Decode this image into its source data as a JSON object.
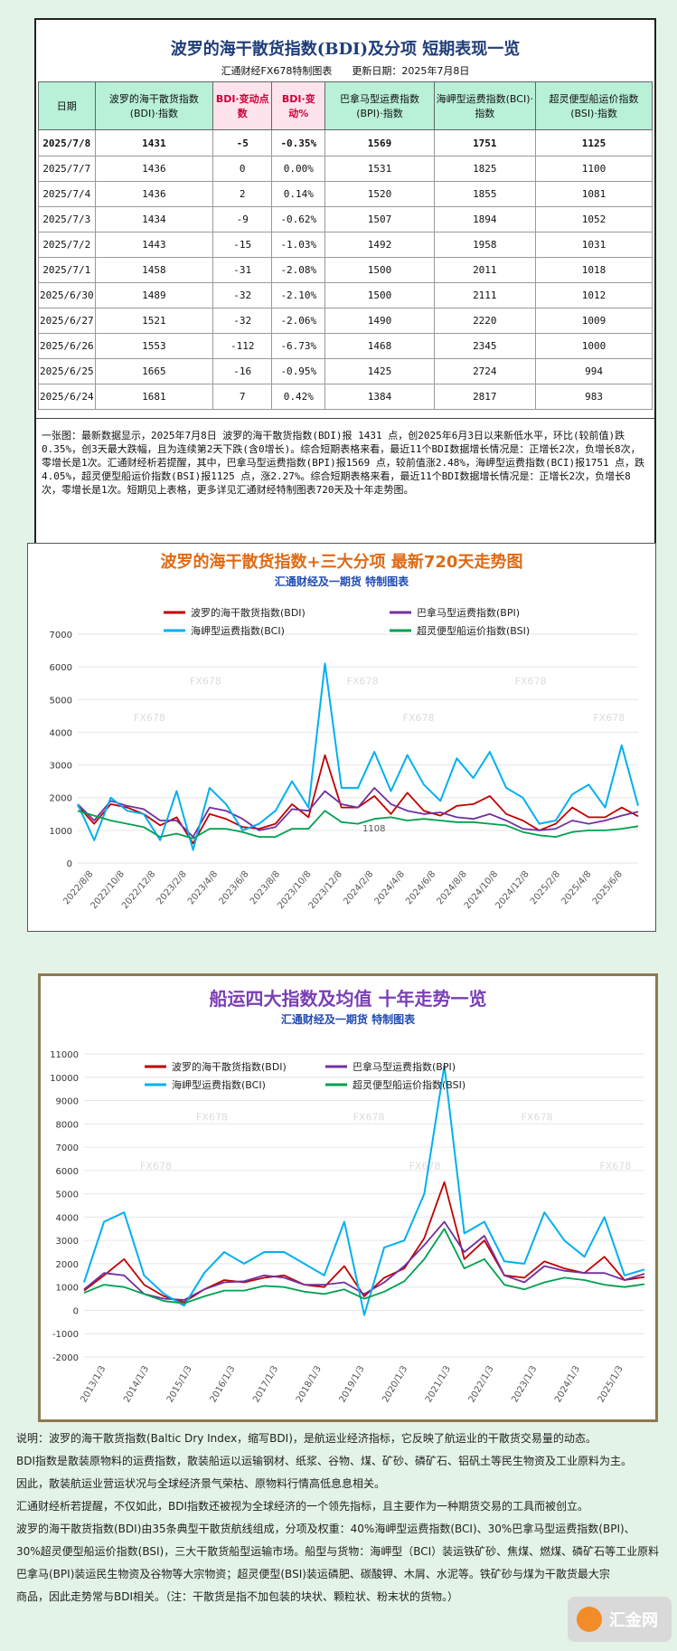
{
  "summary": {
    "title": "波罗的海干散货指数(BDI)及分项 短期表现一览",
    "subtitle": "汇通财经FX678特制图表　　更新日期：2025年7月8日",
    "columns": [
      "日期",
      "波罗的海干散货指数(BDI)·指数",
      "BDI·变动点数",
      "BDI·变动%",
      "巴拿马型运费指数(BPI)·指数",
      "海岬型运费指数(BCI)·指数",
      "超灵便型船运价指数(BSI)·指数"
    ],
    "rows": [
      [
        "2025/7/8",
        "1431",
        "-5",
        "-0.35%",
        "1569",
        "1751",
        "1125"
      ],
      [
        "2025/7/7",
        "1436",
        "0",
        "0.00%",
        "1531",
        "1825",
        "1100"
      ],
      [
        "2025/7/4",
        "1436",
        "2",
        "0.14%",
        "1520",
        "1855",
        "1081"
      ],
      [
        "2025/7/3",
        "1434",
        "-9",
        "-0.62%",
        "1507",
        "1894",
        "1052"
      ],
      [
        "2025/7/2",
        "1443",
        "-15",
        "-1.03%",
        "1492",
        "1958",
        "1031"
      ],
      [
        "2025/7/1",
        "1458",
        "-31",
        "-2.08%",
        "1500",
        "2011",
        "1018"
      ],
      [
        "2025/6/30",
        "1489",
        "-32",
        "-2.10%",
        "1500",
        "2111",
        "1012"
      ],
      [
        "2025/6/27",
        "1521",
        "-32",
        "-2.06%",
        "1490",
        "2220",
        "1009"
      ],
      [
        "2025/6/26",
        "1553",
        "-112",
        "-6.73%",
        "1468",
        "2345",
        "1000"
      ],
      [
        "2025/6/25",
        "1665",
        "-16",
        "-0.95%",
        "1425",
        "2724",
        "994"
      ],
      [
        "2025/6/24",
        "1681",
        "7",
        "0.42%",
        "1384",
        "2817",
        "983"
      ]
    ],
    "note": "一张图：最新数据显示，2025年7月8日 波罗的海干散货指数(BDI)报 1431 点，创2025年6月3日以来新低水平，环比(较前值)跌0.35%，创3天最大跌幅，且为连续第2天下跌(含0增长)。综合短期表格来看，最近11个BDI数据增长情况是：正增长2次，负增长8次，零增长是1次。汇通财经析若提醒，其中，巴拿马型运费指数(BPI)报1569 点，较前值涨2.48%，海岬型运费指数(BCI)报1751 点，跌4.05%，超灵便型船运价指数(BSI)报1125 点，涨2.27%。综合短期表格来看，最近11个BDI数据增长情况是：正增长2次，负增长8次，零增长是1次。短期见上表格，更多详见汇通财经特制图表720天及十年走势图。"
  },
  "chart_data": [
    {
      "type": "line",
      "title": "波罗的海干散货指数+三大分项 最新720天走势图",
      "subtitle": "汇通财经及一期货 特制图表",
      "watermark": "FX678",
      "annotation": "1108",
      "ylim": [
        0,
        7000
      ],
      "yticks": [
        0,
        1000,
        2000,
        3000,
        4000,
        5000,
        6000,
        7000
      ],
      "x_labels": [
        "2022/8/8",
        "2022/10/8",
        "2022/12/8",
        "2023/2/8",
        "2023/4/8",
        "2023/6/8",
        "2023/8/8",
        "2023/10/8",
        "2023/12/8",
        "2024/2/8",
        "2024/4/8",
        "2024/6/8",
        "2024/8/8",
        "2024/10/8",
        "2024/12/8",
        "2025/2/8",
        "2025/4/8",
        "2025/6/8"
      ],
      "legend": [
        "波罗的海干散货指数(BDI)",
        "巴拿马型运费指数(BPI)",
        "海岬型运费指数(BCI)",
        "超灵便型船运价指数(BSI)"
      ],
      "colors": [
        "#c00000",
        "#7030a0",
        "#00b0f0",
        "#00a050"
      ],
      "series": [
        {
          "name": "波罗的海干散货指数(BDI)",
          "values": [
            1750,
            1200,
            1800,
            1700,
            1500,
            1150,
            1400,
            600,
            1500,
            1350,
            1100,
            1050,
            1200,
            1800,
            1400,
            3300,
            1700,
            1700,
            2050,
            1500,
            2150,
            1600,
            1450,
            1750,
            1800,
            2050,
            1500,
            1300,
            1000,
            1200,
            1700,
            1400,
            1400,
            1700,
            1431
          ]
        },
        {
          "name": "巴拿马型运费指数(BPI)",
          "values": [
            1800,
            1300,
            1900,
            1750,
            1650,
            1300,
            1300,
            800,
            1700,
            1600,
            1350,
            1000,
            1100,
            1650,
            1600,
            2200,
            1800,
            1700,
            2300,
            1800,
            1600,
            1500,
            1550,
            1400,
            1350,
            1500,
            1300,
            1050,
            1000,
            1050,
            1300,
            1200,
            1300,
            1450,
            1569
          ]
        },
        {
          "name": "海岬型运费指数(BCI)",
          "values": [
            1800,
            700,
            2000,
            1600,
            1500,
            700,
            2200,
            400,
            2300,
            1800,
            1000,
            1200,
            1600,
            2500,
            1700,
            6100,
            2300,
            2300,
            3400,
            2200,
            3300,
            2400,
            1900,
            3200,
            2600,
            3400,
            2300,
            2000,
            1200,
            1300,
            2100,
            2400,
            1700,
            3600,
            1751
          ]
        },
        {
          "name": "超灵便型船运价指数(BSI)",
          "values": [
            1600,
            1450,
            1300,
            1200,
            1100,
            800,
            900,
            750,
            1050,
            1050,
            950,
            800,
            800,
            1050,
            1050,
            1600,
            1250,
            1200,
            1350,
            1400,
            1300,
            1350,
            1300,
            1250,
            1250,
            1200,
            1150,
            950,
            850,
            800,
            950,
            1000,
            1000,
            1050,
            1125
          ]
        }
      ]
    },
    {
      "type": "line",
      "title": "船运四大指数及均值 十年走势一览",
      "subtitle": "汇通财经及一期货 特制图表",
      "watermark": "FX678",
      "ylim": [
        -2000,
        11000
      ],
      "yticks": [
        -2000,
        -1000,
        0,
        1000,
        2000,
        3000,
        4000,
        5000,
        6000,
        7000,
        8000,
        9000,
        10000,
        11000
      ],
      "x_labels": [
        "2013/1/3",
        "2014/1/3",
        "2015/1/3",
        "2016/1/3",
        "2017/1/3",
        "2018/1/3",
        "2019/1/3",
        "2020/1/3",
        "2021/1/3",
        "2022/1/3",
        "2023/1/3",
        "2024/1/3",
        "2025/1/3"
      ],
      "legend": [
        "波罗的海干散货指数(BDI)",
        "巴拿马型运费指数(BPI)",
        "海岬型运费指数(BCI)",
        "超灵便型船运价指数(BSI)"
      ],
      "colors": [
        "#c00000",
        "#7030a0",
        "#00b0f0",
        "#00a050"
      ],
      "series": [
        {
          "name": "波罗的海干散货指数(BDI)",
          "values": [
            850,
            1500,
            2200,
            1100,
            600,
            350,
            900,
            1300,
            1200,
            1400,
            1500,
            1100,
            1000,
            1900,
            600,
            1400,
            1800,
            3100,
            5500,
            2200,
            3000,
            1500,
            1400,
            2100,
            1800,
            1600,
            2300,
            1300,
            1431
          ]
        },
        {
          "name": "巴拿马型运费指数(BPI)",
          "values": [
            900,
            1600,
            1500,
            700,
            500,
            450,
            900,
            1200,
            1250,
            1500,
            1400,
            1100,
            1100,
            1200,
            700,
            1200,
            1900,
            2800,
            3800,
            2500,
            3200,
            1500,
            1200,
            1900,
            1700,
            1600,
            1600,
            1300,
            1569
          ]
        },
        {
          "name": "海岬型运费指数(BCI)",
          "values": [
            1200,
            3800,
            4200,
            1500,
            700,
            200,
            1600,
            2500,
            2000,
            2500,
            2500,
            2000,
            1500,
            3800,
            -200,
            2700,
            3000,
            5000,
            10500,
            3300,
            3800,
            2100,
            2000,
            4200,
            3000,
            2300,
            4000,
            1500,
            1751
          ]
        },
        {
          "name": "超灵便型船运价指数(BSI)",
          "values": [
            750,
            1100,
            1000,
            700,
            400,
            300,
            600,
            850,
            850,
            1050,
            1000,
            800,
            700,
            900,
            500,
            800,
            1250,
            2200,
            3500,
            1800,
            2200,
            1100,
            900,
            1200,
            1400,
            1300,
            1100,
            1000,
            1125
          ]
        }
      ]
    }
  ],
  "footer": {
    "lines": [
      "说明：波罗的海干散货指数(Baltic Dry Index，缩写BDI)，是航运业经济指标，它反映了航运业的干散货交易量的动态。",
      "BDI指数是散装原物料的运费指数，散装船运以运输钢材、纸浆、谷物、煤、矿砂、磷矿石、铝矾土等民生物资及工业原料为主。",
      "因此，散装航运业营运状况与全球经济景气荣枯、原物料行情高低息息相关。",
      "汇通财经析若提醒，不仅如此，BDI指数还被视为全球经济的一个领先指标，且主要作为一种期货交易的工具而被创立。",
      "波罗的海干散货指数(BDI)由35条典型干散货航线组成，分项及权重：40%海岬型运费指数(BCI)、30%巴拿马型运费指数(BPI)、",
      "30%超灵便型船运价指数(BSI)，三大干散货船型运输市场。船型与货物：海岬型（BCI）装运铁矿砂、焦煤、燃煤、磷矿石等工业原料",
      "巴拿马(BPI)装运民生物资及谷物等大宗物资；超灵便型(BSI)装运磷肥、碳酸钾、木屑、水泥等。铁矿砂与煤为干散货最大宗",
      "商品，因此走势常与BDI相关。（注：干散货是指不加包装的块状、颗粒状、粉末状的货物。）"
    ],
    "logo_text": "汇金网"
  }
}
